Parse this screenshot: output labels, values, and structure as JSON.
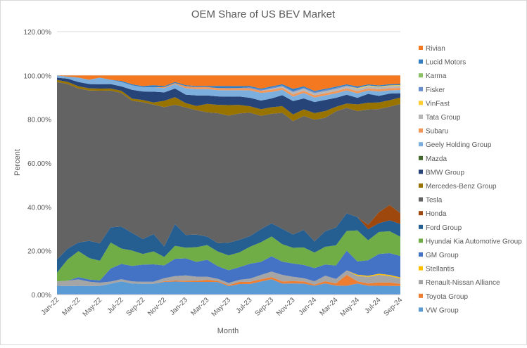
{
  "chart_data": {
    "type": "area",
    "stacked": true,
    "title": "OEM Share of US BEV Market",
    "xlabel": "Month",
    "ylabel": "Percent",
    "ylim": [
      0,
      1.2
    ],
    "y_ticks": [
      "0.00%",
      "20.00%",
      "40.00%",
      "60.00%",
      "80.00%",
      "100.00%",
      "120.00%"
    ],
    "x": [
      "Jan-22",
      "Feb-22",
      "Mar-22",
      "Apr-22",
      "May-22",
      "Jun-22",
      "Jul-22",
      "Aug-22",
      "Sep-22",
      "Oct-22",
      "Nov-22",
      "Dec-22",
      "Jan-23",
      "Feb-23",
      "Mar-23",
      "Apr-23",
      "May-23",
      "Jun-23",
      "Jul-23",
      "Aug-23",
      "Sep-23",
      "Oct-23",
      "Nov-23",
      "Dec-23",
      "Jan-24",
      "Feb-24",
      "Mar-24",
      "Apr-24",
      "May-24",
      "Jun-24",
      "Jul-24",
      "Aug-24",
      "Sep-24"
    ],
    "x_tick_labels": [
      "Jan-22",
      "Mar-22",
      "May-22",
      "Jul-22",
      "Sep-22",
      "Nov-22",
      "Jan-23",
      "Mar-23",
      "May-23",
      "Jul-23",
      "Sep-23",
      "Nov-23",
      "Jan-24",
      "Mar-24",
      "May-24",
      "Jul-24",
      "Sep-24"
    ],
    "grid": true,
    "legend_position": "right",
    "series": [
      {
        "name": "VW Group",
        "color": "#5b9bd5",
        "values": [
          0.04,
          0.04,
          0.04,
          0.04,
          0.04,
          0.05,
          0.06,
          0.05,
          0.05,
          0.05,
          0.06,
          0.06,
          0.06,
          0.06,
          0.06,
          0.06,
          0.04,
          0.05,
          0.05,
          0.06,
          0.07,
          0.05,
          0.05,
          0.05,
          0.04,
          0.05,
          0.04,
          0.04,
          0.05,
          0.04,
          0.04,
          0.04,
          0.04
        ]
      },
      {
        "name": "Toyota Group",
        "color": "#ed7d31",
        "values": [
          0,
          0,
          0,
          0,
          0,
          0,
          0,
          0,
          0,
          0,
          0.003,
          0.005,
          0.005,
          0.005,
          0.01,
          0.005,
          0.005,
          0.01,
          0.01,
          0.01,
          0.01,
          0.01,
          0.01,
          0.01,
          0.005,
          0.01,
          0.01,
          0.05,
          0.01,
          0.01,
          0.015,
          0.015,
          0.01
        ]
      },
      {
        "name": "Renault-Nissan Alliance",
        "color": "#a5a5a5",
        "values": [
          0.02,
          0.025,
          0.03,
          0.02,
          0.015,
          0.01,
          0.01,
          0.01,
          0.01,
          0.01,
          0.015,
          0.02,
          0.025,
          0.02,
          0.015,
          0.01,
          0.01,
          0.01,
          0.015,
          0.02,
          0.025,
          0.03,
          0.02,
          0.015,
          0.015,
          0.025,
          0.02,
          0.02,
          0.025,
          0.03,
          0.035,
          0.03,
          0.025
        ]
      },
      {
        "name": "Stellantis",
        "color": "#ffc000",
        "values": [
          0,
          0,
          0,
          0,
          0,
          0,
          0,
          0,
          0,
          0,
          0,
          0,
          0,
          0,
          0,
          0,
          0,
          0,
          0,
          0,
          0,
          0,
          0,
          0,
          0,
          0,
          0,
          0,
          0.005,
          0.005,
          0.005,
          0.005,
          0.005
        ]
      },
      {
        "name": "GM Group",
        "color": "#4472c4",
        "values": [
          0,
          0,
          0.01,
          0.01,
          0.01,
          0.06,
          0.07,
          0.07,
          0.08,
          0.08,
          0.06,
          0.08,
          0.08,
          0.07,
          0.08,
          0.06,
          0.06,
          0.06,
          0.07,
          0.06,
          0.07,
          0.06,
          0.06,
          0.06,
          0.06,
          0.05,
          0.06,
          0.09,
          0.06,
          0.07,
          0.09,
          0.1,
          0.1
        ]
      },
      {
        "name": "Hyundai Kia Automotive Group",
        "color": "#70ad47",
        "values": [
          0.04,
          0.1,
          0.12,
          0.1,
          0.09,
          0.12,
          0.07,
          0.07,
          0.05,
          0.06,
          0.04,
          0.06,
          0.05,
          0.07,
          0.07,
          0.07,
          0.07,
          0.07,
          0.08,
          0.09,
          0.09,
          0.08,
          0.07,
          0.08,
          0.07,
          0.08,
          0.09,
          0.09,
          0.14,
          0.09,
          0.1,
          0.1,
          0.09
        ]
      },
      {
        "name": "Ford Group",
        "color": "#255e91",
        "values": [
          0.06,
          0.05,
          0.04,
          0.08,
          0.08,
          0.07,
          0.1,
          0.08,
          0.07,
          0.08,
          0.05,
          0.1,
          0.06,
          0.06,
          0.04,
          0.04,
          0.06,
          0.06,
          0.05,
          0.06,
          0.06,
          0.07,
          0.06,
          0.08,
          0.05,
          0.07,
          0.08,
          0.08,
          0.06,
          0.05,
          0.04,
          0.05,
          0.06
        ]
      },
      {
        "name": "Honda",
        "color": "#9e480e",
        "values": [
          0,
          0,
          0,
          0,
          0,
          0,
          0,
          0,
          0,
          0,
          0,
          0,
          0,
          0,
          0,
          0,
          0,
          0,
          0,
          0,
          0,
          0,
          0,
          0,
          0,
          0,
          0,
          0,
          0,
          0.02,
          0.05,
          0.07,
          0.05
        ]
      },
      {
        "name": "Tesla",
        "color": "#636363",
        "values": [
          0.81,
          0.77,
          0.71,
          0.7,
          0.7,
          0.63,
          0.61,
          0.6,
          0.64,
          0.6,
          0.66,
          0.55,
          0.6,
          0.59,
          0.59,
          0.62,
          0.6,
          0.6,
          0.58,
          0.52,
          0.5,
          0.53,
          0.51,
          0.52,
          0.55,
          0.51,
          0.52,
          0.48,
          0.48,
          0.52,
          0.47,
          0.45,
          0.51
        ]
      },
      {
        "name": "Mercedes-Benz Group",
        "color": "#997300",
        "values": [
          0.01,
          0.01,
          0.01,
          0.01,
          0.01,
          0.01,
          0.01,
          0.01,
          0.01,
          0.01,
          0.03,
          0.035,
          0.02,
          0.02,
          0.04,
          0.04,
          0.05,
          0.04,
          0.03,
          0.03,
          0.03,
          0.03,
          0.03,
          0.03,
          0.03,
          0.03,
          0.02,
          0.02,
          0.03,
          0.03,
          0.03,
          0.03,
          0.03
        ]
      },
      {
        "name": "BMW Group",
        "color": "#264478",
        "values": [
          0.01,
          0.015,
          0.02,
          0.02,
          0.02,
          0.02,
          0.02,
          0.04,
          0.04,
          0.05,
          0.04,
          0.04,
          0.04,
          0.05,
          0.04,
          0.04,
          0.04,
          0.04,
          0.04,
          0.04,
          0.04,
          0.05,
          0.06,
          0.05,
          0.05,
          0.05,
          0.04,
          0.04,
          0.03,
          0.04,
          0.03,
          0.03,
          0.02
        ]
      },
      {
        "name": "Mazda",
        "color": "#43682b",
        "values": [
          0,
          0,
          0,
          0,
          0,
          0,
          0,
          0,
          0,
          0,
          0,
          0,
          0,
          0,
          0,
          0,
          0,
          0,
          0,
          0,
          0,
          0,
          0,
          0,
          0,
          0,
          0,
          0,
          0,
          0,
          0,
          0,
          0
        ]
      },
      {
        "name": "Geely Holding Group",
        "color": "#7cafdd",
        "values": [
          0.01,
          0.01,
          0.02,
          0.02,
          0.03,
          0.02,
          0.02,
          0.02,
          0.02,
          0.02,
          0.02,
          0.02,
          0.03,
          0.03,
          0.03,
          0.03,
          0.03,
          0.03,
          0.035,
          0.035,
          0.03,
          0.025,
          0.02,
          0.025,
          0.02,
          0.02,
          0.02,
          0.02,
          0.02,
          0.015,
          0.02,
          0.015,
          0.015
        ]
      },
      {
        "name": "Subaru",
        "color": "#f1975a",
        "values": [
          0,
          0,
          0,
          0,
          0,
          0,
          0,
          0,
          0,
          0,
          0.005,
          0.005,
          0.01,
          0.01,
          0.01,
          0.01,
          0.01,
          0.01,
          0.01,
          0.01,
          0.01,
          0.01,
          0.01,
          0.01,
          0.01,
          0.01,
          0.01,
          0.01,
          0.01,
          0.01,
          0.01,
          0.01,
          0.01
        ]
      },
      {
        "name": "Tata Group",
        "color": "#b7b7b7",
        "values": [
          0,
          0,
          0,
          0,
          0,
          0,
          0,
          0,
          0,
          0,
          0,
          0,
          0,
          0,
          0,
          0,
          0,
          0,
          0,
          0,
          0.005,
          0.005,
          0.01,
          0.01,
          0.01,
          0.01,
          0.01,
          0.01,
          0.01,
          0.01,
          0.01,
          0.01,
          0.01
        ]
      },
      {
        "name": "VinFast",
        "color": "#ffcd33",
        "values": [
          0,
          0,
          0,
          0,
          0,
          0,
          0,
          0,
          0,
          0,
          0,
          0,
          0,
          0,
          0,
          0,
          0,
          0,
          0,
          0,
          0,
          0,
          0,
          0,
          0,
          0,
          0,
          0,
          0.003,
          0.003,
          0.003,
          0.003,
          0.003
        ]
      },
      {
        "name": "Fisker",
        "color": "#698ed0",
        "values": [
          0,
          0,
          0,
          0,
          0,
          0,
          0,
          0,
          0,
          0,
          0,
          0,
          0,
          0,
          0,
          0,
          0,
          0,
          0.005,
          0.005,
          0.005,
          0.005,
          0.005,
          0.005,
          0.005,
          0.005,
          0.005,
          0.003,
          0.003,
          0,
          0,
          0,
          0
        ]
      },
      {
        "name": "Karma",
        "color": "#8cc168",
        "values": [
          0,
          0,
          0,
          0,
          0,
          0,
          0,
          0,
          0,
          0,
          0,
          0,
          0,
          0,
          0,
          0,
          0,
          0,
          0,
          0,
          0,
          0,
          0,
          0,
          0,
          0,
          0,
          0,
          0,
          0,
          0,
          0,
          0
        ]
      },
      {
        "name": "Lucid Motors",
        "color": "#327dc2",
        "values": [
          0,
          0,
          0,
          0,
          0,
          0,
          0.005,
          0.005,
          0.005,
          0.01,
          0.005,
          0.005,
          0.005,
          0.005,
          0.005,
          0.01,
          0.01,
          0.01,
          0.005,
          0.005,
          0.005,
          0.005,
          0.01,
          0.005,
          0.005,
          0.005,
          0.005,
          0.005,
          0.005,
          0.005,
          0.005,
          0.005,
          0.005
        ]
      },
      {
        "name": "Rivian",
        "color": "#f4781f",
        "values": [
          0,
          0.005,
          0.01,
          0.02,
          0.01,
          0.02,
          0.025,
          0.04,
          0.05,
          0.045,
          0.05,
          0.03,
          0.045,
          0.05,
          0.05,
          0.05,
          0.05,
          0.05,
          0.05,
          0.06,
          0.05,
          0.04,
          0.06,
          0.05,
          0.07,
          0.06,
          0.05,
          0.04,
          0.05,
          0.04,
          0.045,
          0.04,
          0.04
        ]
      }
    ]
  }
}
